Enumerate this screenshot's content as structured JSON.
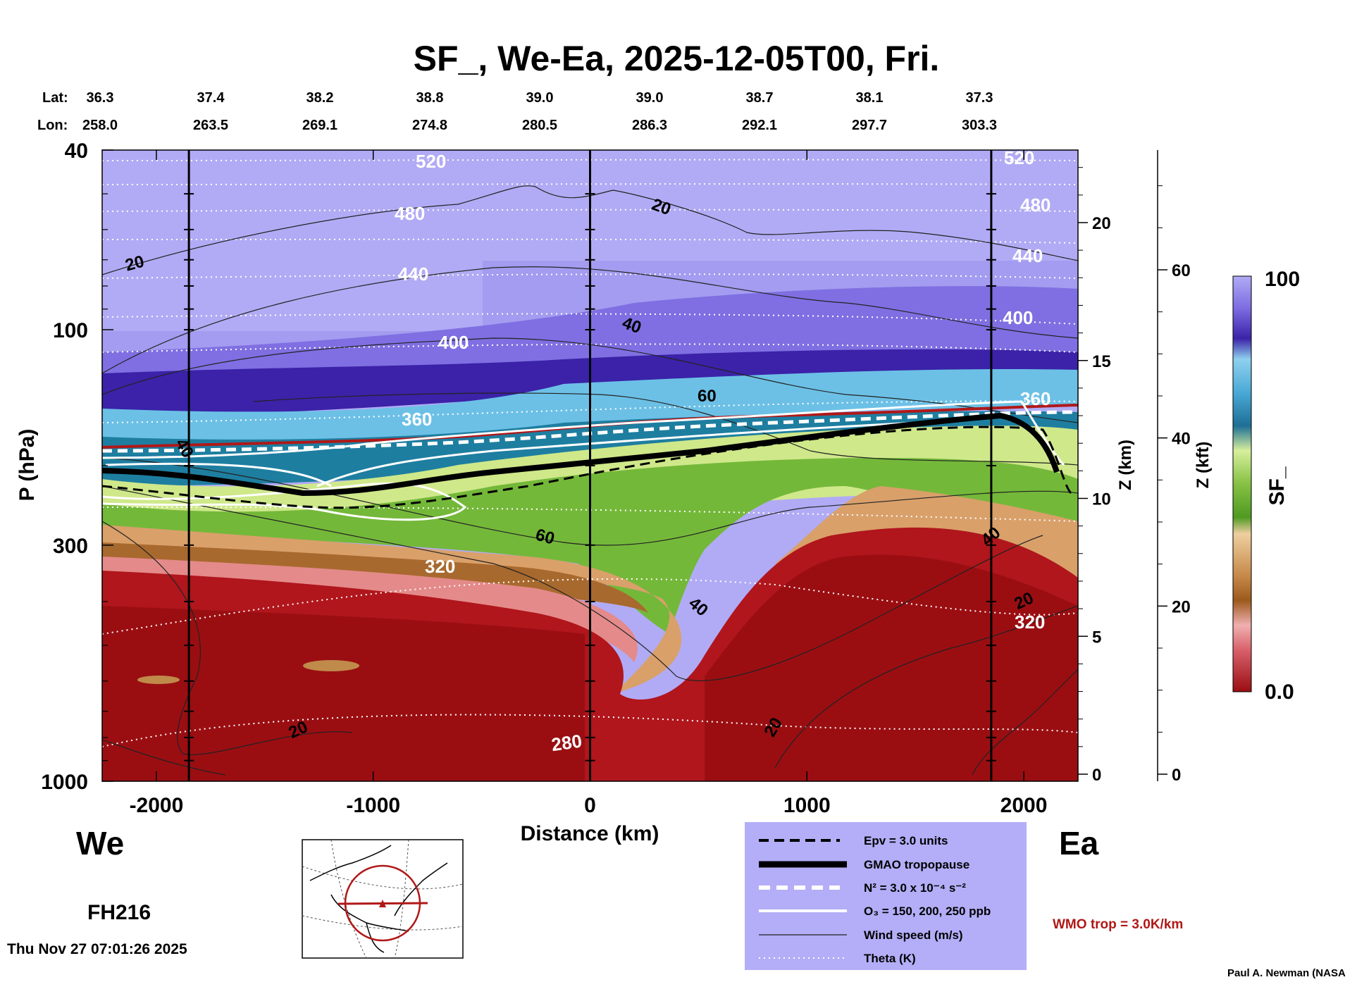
{
  "title": "SF_, We-Ea, 2025-12-05T00, Fri.",
  "header": {
    "lat_label": "Lat:",
    "lon_label": "Lon:",
    "lat_values": [
      "36.3",
      "37.4",
      "38.2",
      "38.8",
      "39.0",
      "39.0",
      "38.7",
      "38.1",
      "37.3"
    ],
    "lon_values": [
      "258.0",
      "263.5",
      "269.1",
      "274.8",
      "280.5",
      "286.3",
      "292.1",
      "297.7",
      "303.3"
    ]
  },
  "chart_data": {
    "type": "heatmap",
    "title": "SF_, We-Ea, 2025-12-05T00, Fri.",
    "xlabel": "Distance (km)",
    "ylabel": "P (hPa)",
    "xlim": [
      -2250,
      2250
    ],
    "ylim": [
      1000,
      40
    ],
    "yscale": "log",
    "x_ticks": [
      -2000,
      -1000,
      0,
      1000,
      2000
    ],
    "y_ticks": [
      40,
      100,
      300,
      1000
    ],
    "z_km_ticks": [
      0,
      5,
      10,
      15,
      20
    ],
    "z_kft_ticks": [
      0,
      20,
      40,
      60
    ],
    "z_km_label": "Z (km)",
    "z_kft_label": "Z (kft)",
    "colorbar": {
      "label": "SF_",
      "min": 0.0,
      "max": 100,
      "min_label": "0.0",
      "max_label": "100"
    },
    "vertical_reference_lines_km": [
      -1850,
      0,
      1850
    ],
    "theta_contour_labels": [
      "520",
      "480",
      "440",
      "400",
      "360",
      "320",
      "280",
      "520",
      "480",
      "440",
      "400",
      "360",
      "320"
    ],
    "wind_contour_labels": [
      "20",
      "20",
      "40",
      "60",
      "40",
      "60",
      "40",
      "20",
      "20",
      "20",
      "40"
    ],
    "side_labels": {
      "left": "We",
      "right": "Ea"
    }
  },
  "legend": {
    "items": [
      {
        "style": "dashed-black",
        "label": "Epv = 3.0 units"
      },
      {
        "style": "thick-black",
        "label": "GMAO tropopause"
      },
      {
        "style": "dashed-white",
        "label": "N² = 3.0 x 10⁻⁴ s⁻²"
      },
      {
        "style": "solid-white",
        "label": "O₃ = 150, 200, 250 ppb"
      },
      {
        "style": "thin-black",
        "label": "Wind speed (m/s)"
      },
      {
        "style": "dotted-white",
        "label": "Theta (K)"
      }
    ]
  },
  "wmo_note": "WMO trop = 3.0K/km",
  "forecast_hour": "FH216",
  "timestamp": "Thu Nov 27 07:01:26 2025",
  "credit": "Paul A. Newman (NASA",
  "colors": {
    "stratosphere_light": "#b1abf5",
    "stratosphere_mid": "#8f83e6",
    "stratosphere_dark": "#3b22a8",
    "blue_band": "#4aa9d6",
    "teal_band": "#1e7ea0",
    "green_light": "#cfe88a",
    "green": "#74b83a",
    "tan": "#d9a06a",
    "brown": "#a8692e",
    "pink": "#e48a8a",
    "red": "#b0161c",
    "dark_red": "#9a0e12",
    "wmo_red": "#b01818",
    "legend_bg": "#b3aef7"
  }
}
